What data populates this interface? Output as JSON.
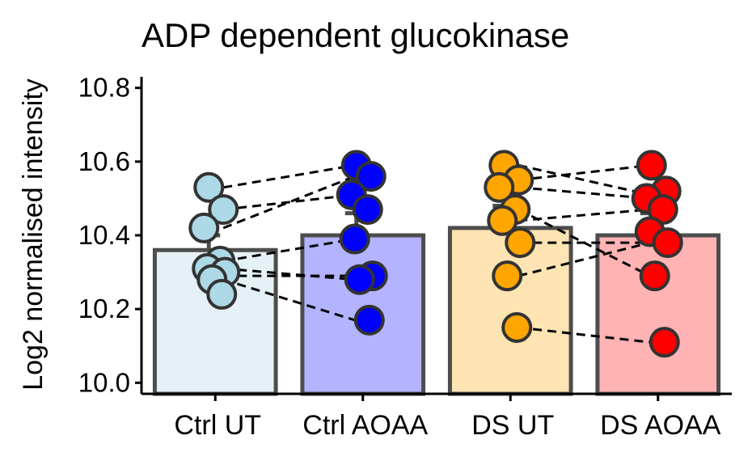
{
  "chart_data": {
    "type": "bar",
    "title": "ADP dependent glucokinase",
    "xlabel": "",
    "ylabel": "Log2 normalised intensity",
    "ylim": [
      9.97,
      10.83
    ],
    "yticks": [
      10.0,
      10.2,
      10.4,
      10.6,
      10.8
    ],
    "ytick_labels": [
      "10.0",
      "10.2",
      "10.4",
      "10.6",
      "10.8"
    ],
    "categories": [
      "Ctrl UT",
      "Ctrl AOAA",
      "DS UT",
      "DS AOAA"
    ],
    "bar_fill": [
      "#e5f1f7",
      "#b3b3ff",
      "#fde4b2",
      "#ffb3b3"
    ],
    "point_fill": [
      "#add8e6",
      "#0000ff",
      "#ffa500",
      "#ff0000"
    ],
    "bar_values": [
      10.36,
      10.4,
      10.42,
      10.4
    ],
    "error_upper": [
      10.4,
      10.46,
      10.48,
      10.46
    ],
    "points": [
      [
        10.53,
        10.47,
        10.42,
        10.33,
        10.31,
        10.3,
        10.28,
        10.24
      ],
      [
        10.59,
        10.56,
        10.51,
        10.47,
        10.39,
        10.29,
        10.28,
        10.17
      ],
      [
        10.59,
        10.55,
        10.53,
        10.47,
        10.44,
        10.38,
        10.29,
        10.15
      ],
      [
        10.59,
        10.52,
        10.5,
        10.47,
        10.41,
        10.38,
        10.29,
        10.11
      ]
    ],
    "pairs": [
      [
        10.53,
        10.59
      ],
      [
        10.47,
        10.51
      ],
      [
        10.42,
        10.56
      ],
      [
        10.33,
        10.39
      ],
      [
        10.31,
        10.28
      ],
      [
        10.29,
        10.29
      ],
      [
        10.28,
        10.17
      ],
      [
        10.59,
        10.51
      ],
      [
        10.55,
        10.59
      ],
      [
        10.53,
        10.5
      ],
      [
        10.47,
        10.29
      ],
      [
        10.44,
        10.47
      ],
      [
        10.38,
        10.38
      ],
      [
        10.29,
        10.38
      ],
      [
        10.15,
        10.11
      ]
    ],
    "pair_groups": [
      [
        0,
        1
      ],
      [
        0,
        1
      ],
      [
        0,
        1
      ],
      [
        0,
        1
      ],
      [
        0,
        1
      ],
      [
        0,
        1
      ],
      [
        0,
        1
      ],
      [
        2,
        3
      ],
      [
        2,
        3
      ],
      [
        2,
        3
      ],
      [
        2,
        3
      ],
      [
        2,
        3
      ],
      [
        2,
        3
      ],
      [
        2,
        3
      ],
      [
        2,
        3
      ]
    ],
    "grid": false,
    "legend": "none"
  }
}
